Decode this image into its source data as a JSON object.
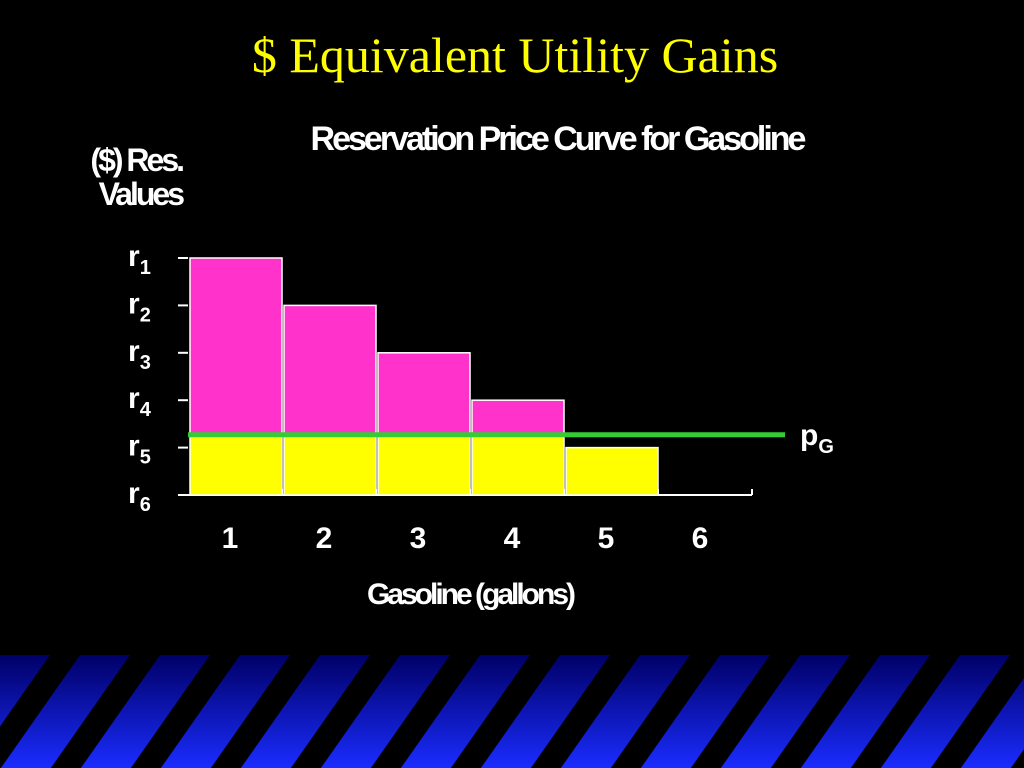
{
  "slide": {
    "title": "$ Equivalent Utility Gains"
  },
  "chart_data": {
    "type": "bar",
    "title": "Reservation Price Curve for Gasoline",
    "xlabel": "Gasoline (gallons)",
    "ylabel": "($) Res. Values",
    "categories": [
      "1",
      "2",
      "3",
      "4",
      "5",
      "6"
    ],
    "values": [
      5,
      4,
      3,
      2,
      1,
      0
    ],
    "ylim": [
      0,
      5
    ],
    "yticks": [
      {
        "value": 5,
        "label": "r1"
      },
      {
        "value": 4,
        "label": "r2"
      },
      {
        "value": 3,
        "label": "r3"
      },
      {
        "value": 2,
        "label": "r4"
      },
      {
        "value": 1,
        "label": "r5"
      },
      {
        "value": 0,
        "label": "r6"
      }
    ],
    "color_above_price": "#ff33cc",
    "color_below_price": "#ffff00",
    "price_line": {
      "value": 1.27,
      "label": "pG",
      "color": "#33cc33"
    }
  }
}
